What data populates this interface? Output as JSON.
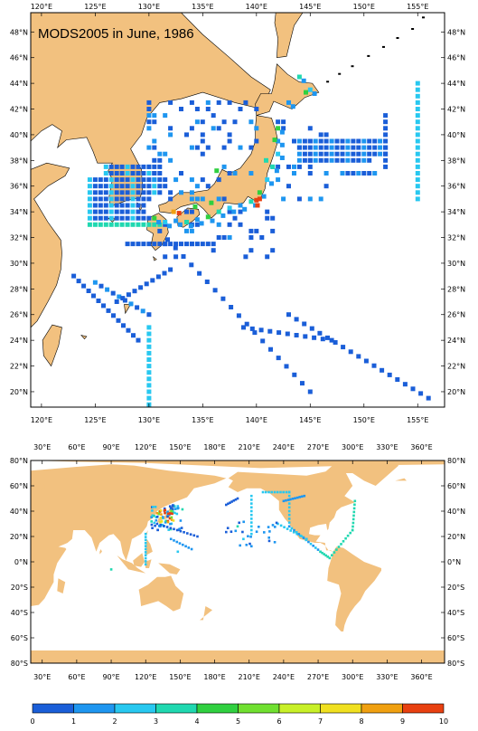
{
  "top_map": {
    "title": "MODS2005 in June, 1986",
    "lon_labels": [
      "120°E",
      "125°E",
      "130°E",
      "135°E",
      "140°E",
      "145°E",
      "150°E",
      "155°E"
    ],
    "lat_labels": [
      "20°N",
      "22°N",
      "24°N",
      "26°N",
      "28°N",
      "30°N",
      "32°N",
      "34°N",
      "36°N",
      "38°N",
      "40°N",
      "42°N",
      "44°N",
      "46°N",
      "48°N"
    ],
    "extent": {
      "lon": [
        119,
        157.5
      ],
      "lat": [
        18.8,
        49.5
      ]
    }
  },
  "bottom_map": {
    "lon_labels": [
      "30°E",
      "60°E",
      "90°E",
      "120°E",
      "150°E",
      "180°E",
      "210°E",
      "240°E",
      "270°E",
      "300°E",
      "330°E",
      "360°E"
    ],
    "lat_labels": [
      "80°S",
      "60°S",
      "40°S",
      "20°S",
      "0°N",
      "20°N",
      "40°N",
      "60°N",
      "80°N"
    ],
    "extent": {
      "lon": [
        20,
        380
      ],
      "lat": [
        -80,
        80
      ]
    }
  },
  "colorbar": {
    "labels": [
      "0",
      "1",
      "2",
      "3",
      "4",
      "5",
      "6",
      "7",
      "8",
      "9",
      "10"
    ],
    "colors": [
      "#1a5ed8",
      "#1e96f0",
      "#28c8f0",
      "#20d8b0",
      "#30d040",
      "#70e030",
      "#c8f028",
      "#f0e020",
      "#f0a010",
      "#e84010"
    ]
  },
  "colors": {
    "land": "#f2c17f",
    "ocean": "#ffffff",
    "frame": "#000000"
  }
}
